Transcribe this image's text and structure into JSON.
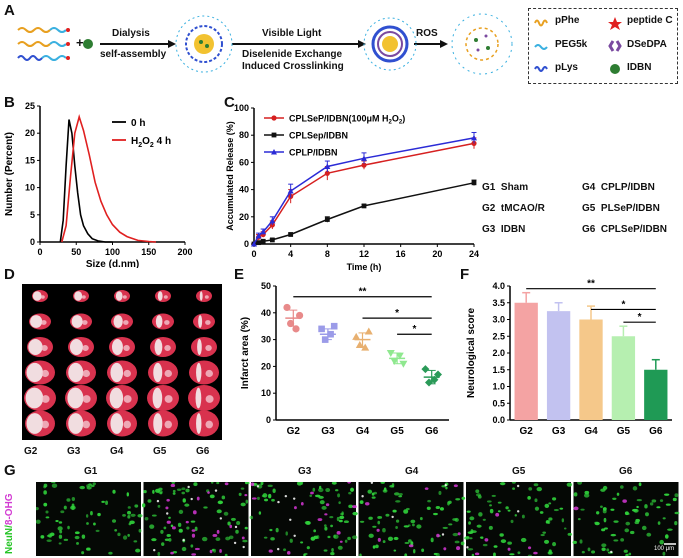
{
  "panels": {
    "A": {
      "label": "A",
      "steps": [
        "Dialysis",
        "self-assembly",
        "Visible Light",
        "Diselenide Exchange",
        "Induced Crosslinking",
        "ROS"
      ],
      "plus": "+",
      "legend": [
        {
          "glyph": "pPhe",
          "label": "pPhe"
        },
        {
          "glyph": "peptide-C",
          "label": "peptide C"
        },
        {
          "glyph": "PEG",
          "label": "PEG5k"
        },
        {
          "glyph": "DSeDPA",
          "label": "DSeDPA"
        },
        {
          "glyph": "pLys",
          "label": "pLys"
        },
        {
          "glyph": "IDBN",
          "label": "IDBN"
        }
      ]
    },
    "B": {
      "label": "B",
      "chart_data": {
        "type": "line",
        "xlabel": "Size (d.nm)",
        "ylabel": "Number (Percent)",
        "xlim": [
          0,
          200
        ],
        "ylim": [
          0,
          25
        ],
        "xticks": [
          0,
          50,
          100,
          150,
          200
        ],
        "yticks": [
          0,
          5,
          10,
          15,
          20,
          25
        ],
        "legend": "top-right",
        "series": [
          {
            "name": "0 h",
            "color": "#000000",
            "x": [
              28,
              32,
              36,
              40,
              44,
              48,
              52,
              56,
              60,
              66,
              72,
              80,
              90,
              100
            ],
            "y": [
              0,
              4,
              14,
              22.5,
              20,
              14,
              9,
              5,
              3,
              1.5,
              0.6,
              0.2,
              0,
              0
            ]
          },
          {
            "name": "H2O2 4 h",
            "color": "#e02020",
            "x": [
              30,
              36,
              42,
              48,
              54,
              60,
              68,
              76,
              84,
              92,
              100,
              110,
              120,
              135,
              150,
              160
            ],
            "y": [
              0,
              3,
              12,
              20,
              23,
              20.5,
              16,
              11,
              7.5,
              5,
              3.2,
              1.8,
              1,
              0.3,
              0.1,
              0
            ]
          }
        ]
      }
    },
    "C": {
      "label": "C",
      "chart_data": {
        "type": "line",
        "xlabel": "Time (h)",
        "ylabel": "Accumulated  Release (%)",
        "xlim": [
          0,
          24
        ],
        "ylim": [
          0,
          100
        ],
        "xticks": [
          0,
          4,
          8,
          12,
          16,
          20,
          24
        ],
        "yticks": [
          0,
          20,
          40,
          60,
          80,
          100
        ],
        "legend": "top-left",
        "series": [
          {
            "name": "CPLSeP/IDBN(100μM H2O2)",
            "color": "#d62020",
            "x": [
              0,
              0.5,
              1,
              2,
              4,
              8,
              12,
              24
            ],
            "y": [
              0,
              5,
              7,
              14,
              35,
              52,
              58,
              74
            ],
            "err": [
              0,
              2,
              2,
              3,
              5,
              5,
              3,
              4
            ]
          },
          {
            "name": "CPLSep/IDBN",
            "color": "#111111",
            "x": [
              0,
              0.5,
              1,
              2,
              4,
              8,
              12,
              24
            ],
            "y": [
              0,
              1,
              2,
              3,
              7,
              18,
              28,
              45
            ],
            "err": [
              0,
              1,
              1,
              1,
              1,
              2,
              1,
              2
            ]
          },
          {
            "name": "CPLP/IDBN",
            "color": "#2b2bd6",
            "x": [
              0,
              0.5,
              1,
              2,
              4,
              8,
              12,
              24
            ],
            "y": [
              0,
              6,
              9,
              17,
              39,
              57,
              63,
              78
            ],
            "err": [
              0,
              2,
              2,
              3,
              5,
              4,
              4,
              4
            ]
          }
        ]
      }
    },
    "groups": [
      {
        "code": "G1",
        "name": "Sham"
      },
      {
        "code": "G2",
        "name": "tMCAO/R"
      },
      {
        "code": "G3",
        "name": "IDBN"
      },
      {
        "code": "G4",
        "name": "CPLP/IDBN"
      },
      {
        "code": "G5",
        "name": "PLSeP/IDBN"
      },
      {
        "code": "G6",
        "name": "CPLSeP/IDBN"
      }
    ],
    "D": {
      "label": "D",
      "columns": [
        "G2",
        "G3",
        "G4",
        "G5",
        "G6"
      ]
    },
    "E": {
      "label": "E",
      "chart_data": {
        "type": "scatter",
        "xlabel": "",
        "ylabel": "Infarct area (%)",
        "categories": [
          "G2",
          "G3",
          "G4",
          "G5",
          "G6"
        ],
        "ylim": [
          0,
          50
        ],
        "yticks": [
          0,
          10,
          20,
          30,
          40,
          50
        ],
        "colors": [
          "#e88a8a",
          "#9b9be8",
          "#e8b070",
          "#8fe88f",
          "#2a9a58"
        ],
        "markers": [
          "circle",
          "square",
          "triangle-up",
          "triangle-down",
          "diamond"
        ],
        "points": [
          [
            42,
            36,
            34,
            39
          ],
          [
            34,
            30,
            32,
            35
          ],
          [
            31,
            28,
            27,
            33
          ],
          [
            25,
            22,
            24,
            21
          ],
          [
            19,
            14,
            15,
            17
          ]
        ],
        "mean": [
          38,
          32,
          30,
          23,
          16
        ],
        "sd": [
          3,
          2,
          2.5,
          2,
          2.5
        ],
        "significance": [
          {
            "from": "G2",
            "to": "G6",
            "text": "**"
          },
          {
            "from": "G4",
            "to": "G6",
            "text": "*"
          },
          {
            "from": "G5",
            "to": "G6",
            "text": "*"
          }
        ]
      }
    },
    "F": {
      "label": "F",
      "chart_data": {
        "type": "bar",
        "xlabel": "",
        "ylabel": "Neurological score",
        "categories": [
          "G2",
          "G3",
          "G4",
          "G5",
          "G6"
        ],
        "values": [
          3.5,
          3.25,
          3.0,
          2.5,
          1.5
        ],
        "err": [
          0.3,
          0.25,
          0.4,
          0.3,
          0.3
        ],
        "ylim": [
          0,
          4
        ],
        "yticks": [
          "0.0",
          "0.5",
          "1.0",
          "1.5",
          "2.0",
          "2.5",
          "3.0",
          "3.5",
          "4.0"
        ],
        "colors": [
          "#f4a3a3",
          "#c2c2f0",
          "#f5c88a",
          "#b6efb0",
          "#1f9a55"
        ],
        "significance": [
          {
            "from": "G2",
            "to": "G6",
            "text": "**"
          },
          {
            "from": "G4",
            "to": "G6",
            "text": "*"
          },
          {
            "from": "G5",
            "to": "G6",
            "text": "*"
          }
        ]
      }
    },
    "G": {
      "label": "G",
      "ylabel_a": "NeuN/",
      "ylabel_b": "8-OHG",
      "columns": [
        "G1",
        "G2",
        "G3",
        "G4",
        "G5",
        "G6"
      ],
      "scale": "100 μm"
    }
  }
}
